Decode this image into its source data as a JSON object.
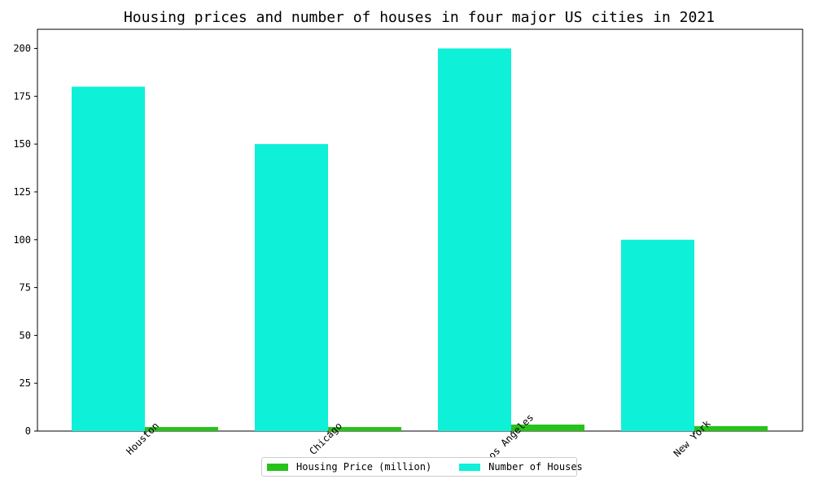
{
  "chart_data": {
    "type": "bar",
    "title": "Housing prices and number of houses in four major US cities in 2021",
    "categories": [
      "Houston",
      "Chicago",
      "Los Angeles",
      "New York"
    ],
    "series": [
      {
        "name": "Number of Houses",
        "values": [
          180,
          150,
          200,
          100
        ],
        "color": "#0ff0d8"
      },
      {
        "name": "Housing Price (million)",
        "values": [
          2.1,
          2.1,
          3.4,
          2.6
        ],
        "color": "#27c21a"
      }
    ],
    "y_ticks": [
      0,
      25,
      50,
      75,
      100,
      125,
      150,
      175,
      200
    ],
    "ylim": [
      0,
      210
    ],
    "xlabel": "",
    "ylabel": "",
    "grid": false,
    "legend_position": "bottom-center"
  },
  "legend": {
    "items": [
      {
        "label": "Housing Price (million)",
        "color": "#27c21a"
      },
      {
        "label": "Number of Houses",
        "color": "#0ff0d8"
      }
    ]
  }
}
